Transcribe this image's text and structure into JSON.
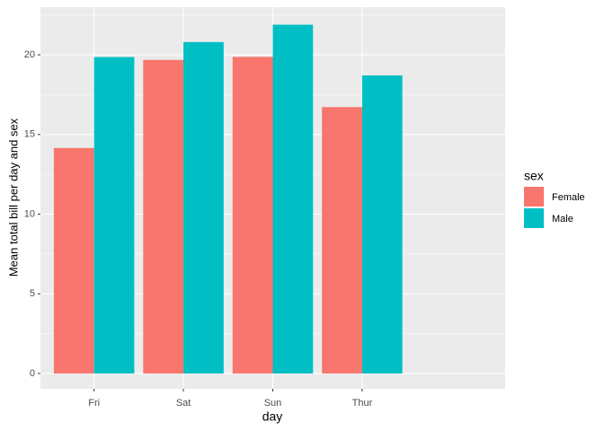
{
  "chart_data": {
    "type": "bar",
    "x_label": "day",
    "y_label": "Mean total bill per day and sex",
    "legend_title": "sex",
    "categories": [
      "Fri",
      "Sat",
      "Sun",
      "Thur"
    ],
    "series": [
      {
        "name": "Female",
        "color": "#f8766d",
        "values": [
          14.15,
          19.68,
          19.87,
          16.72
        ]
      },
      {
        "name": "Male",
        "color": "#00bfc4",
        "values": [
          19.86,
          20.8,
          21.89,
          18.71
        ]
      }
    ],
    "ylim": [
      -0.96,
      22.99
    ],
    "yticks": [
      0,
      5,
      10,
      15,
      20
    ],
    "grid": true,
    "legend_position": "right"
  }
}
